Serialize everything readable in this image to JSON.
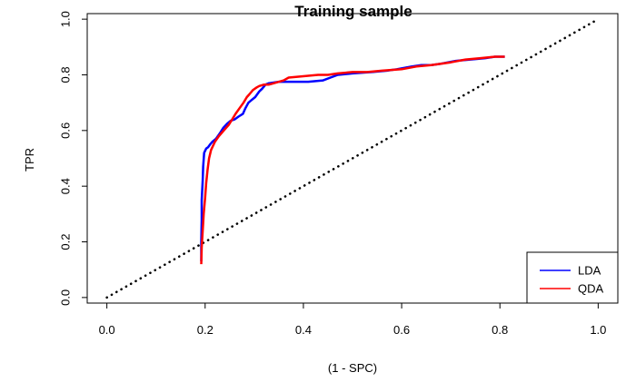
{
  "chart_data": {
    "type": "line",
    "title": "Training sample",
    "xlabel": "(1 - SPC)",
    "ylabel": "TPR",
    "xlim": [
      -0.04,
      1.04
    ],
    "ylim": [
      -0.02,
      1.02
    ],
    "xticks": [
      "0.0",
      "0.2",
      "0.4",
      "0.6",
      "0.8",
      "1.0"
    ],
    "yticks": [
      "0.0",
      "0.2",
      "0.4",
      "0.6",
      "0.8",
      "1.0"
    ],
    "grid": false,
    "legend": {
      "position": "bottom-right",
      "entries": [
        "LDA",
        "QDA"
      ]
    },
    "reference_line": {
      "style": "dotted",
      "color": "#000000",
      "x": [
        0,
        1
      ],
      "y": [
        0,
        1
      ]
    },
    "series": [
      {
        "name": "LDA",
        "color": "#0000ff",
        "x": [
          0.192,
          0.192,
          0.193,
          0.193,
          0.195,
          0.196,
          0.198,
          0.202,
          0.206,
          0.21,
          0.215,
          0.222,
          0.23,
          0.237,
          0.245,
          0.252,
          0.26,
          0.268,
          0.277,
          0.282,
          0.288,
          0.295,
          0.302,
          0.31,
          0.316,
          0.323,
          0.33,
          0.35,
          0.38,
          0.41,
          0.44,
          0.455,
          0.47,
          0.5,
          0.54,
          0.57,
          0.59,
          0.62,
          0.64,
          0.66,
          0.68,
          0.71,
          0.74,
          0.77,
          0.79,
          0.81
        ],
        "y": [
          0.13,
          0.2,
          0.28,
          0.35,
          0.42,
          0.47,
          0.52,
          0.535,
          0.54,
          0.55,
          0.56,
          0.57,
          0.59,
          0.61,
          0.625,
          0.635,
          0.64,
          0.65,
          0.66,
          0.68,
          0.7,
          0.71,
          0.72,
          0.74,
          0.75,
          0.765,
          0.77,
          0.775,
          0.775,
          0.775,
          0.78,
          0.79,
          0.8,
          0.805,
          0.81,
          0.815,
          0.82,
          0.83,
          0.835,
          0.835,
          0.84,
          0.85,
          0.855,
          0.86,
          0.865,
          0.865
        ]
      },
      {
        "name": "QDA",
        "color": "#ff0000",
        "x": [
          0.192,
          0.193,
          0.195,
          0.197,
          0.2,
          0.202,
          0.205,
          0.208,
          0.212,
          0.22,
          0.228,
          0.238,
          0.248,
          0.255,
          0.262,
          0.27,
          0.278,
          0.285,
          0.29,
          0.297,
          0.305,
          0.31,
          0.32,
          0.33,
          0.34,
          0.36,
          0.37,
          0.4,
          0.43,
          0.45,
          0.47,
          0.5,
          0.53,
          0.56,
          0.6,
          0.63,
          0.66,
          0.7,
          0.73,
          0.76,
          0.79,
          0.81
        ],
        "y": [
          0.12,
          0.18,
          0.24,
          0.3,
          0.36,
          0.41,
          0.46,
          0.5,
          0.53,
          0.56,
          0.58,
          0.6,
          0.62,
          0.64,
          0.66,
          0.68,
          0.7,
          0.72,
          0.73,
          0.745,
          0.755,
          0.76,
          0.765,
          0.765,
          0.77,
          0.78,
          0.79,
          0.795,
          0.8,
          0.8,
          0.805,
          0.81,
          0.81,
          0.815,
          0.82,
          0.83,
          0.835,
          0.845,
          0.855,
          0.86,
          0.865,
          0.865
        ]
      }
    ]
  }
}
